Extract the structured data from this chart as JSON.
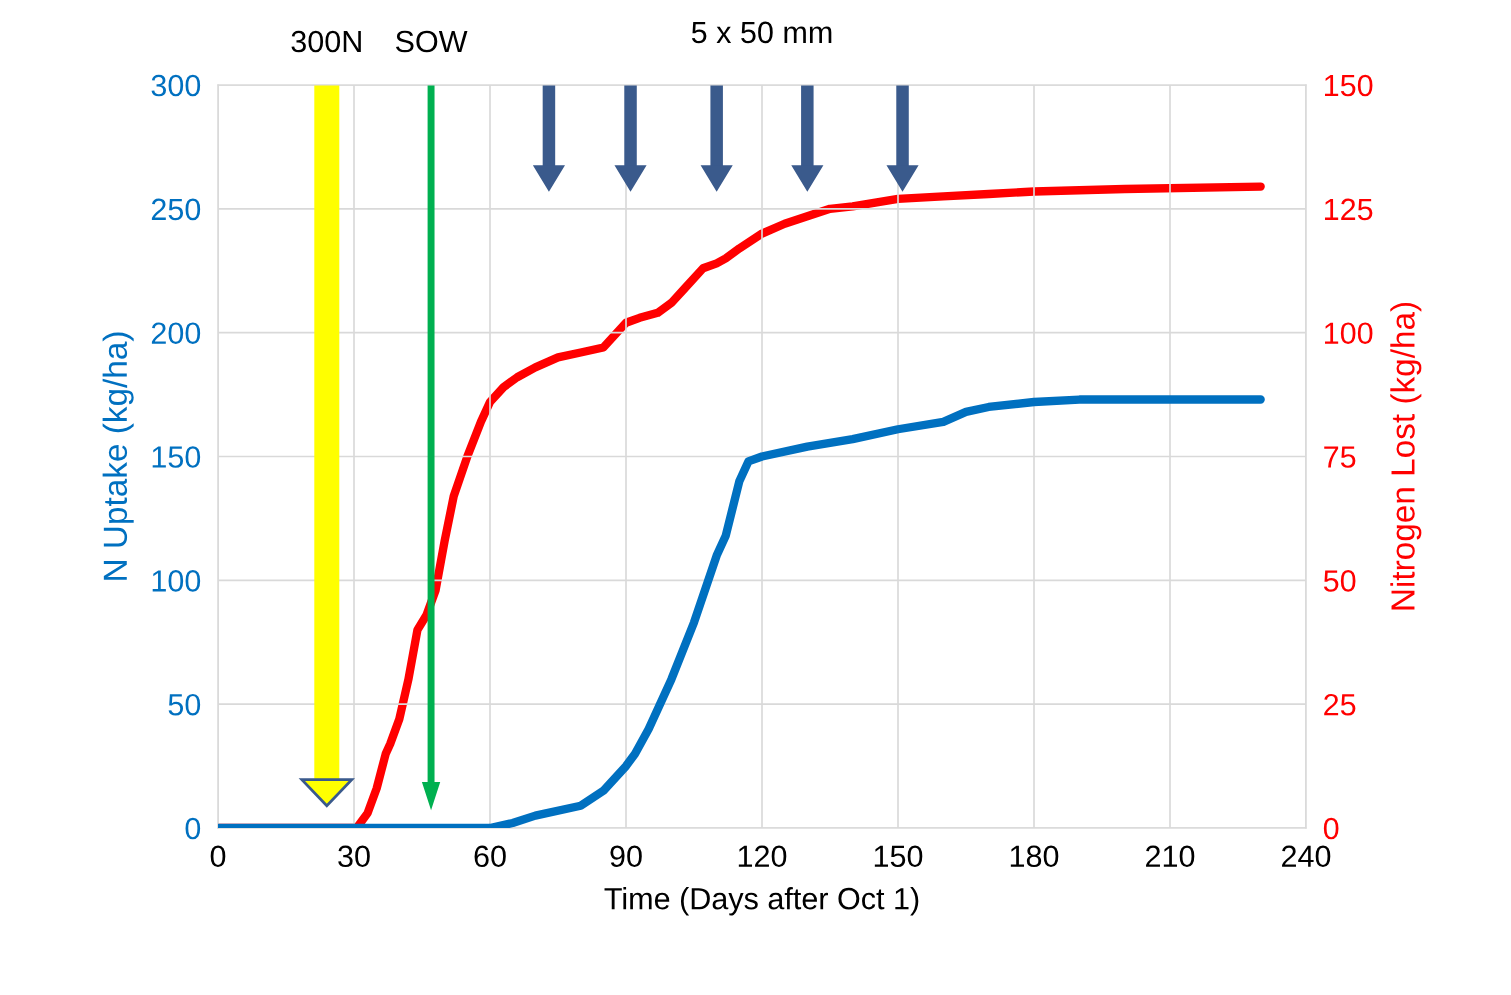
{
  "chart_data": {
    "type": "line",
    "xlabel": "Time (Days after Oct 1)",
    "ylabel": "N Uptake (kg/ha)",
    "y2label": "Nitrogen Lost (kg/ha)",
    "xlim": [
      0,
      240
    ],
    "xticks": [
      0,
      30,
      60,
      90,
      120,
      150,
      180,
      210,
      240
    ],
    "ylim": [
      0,
      300
    ],
    "yticks": [
      0,
      50,
      100,
      150,
      200,
      250,
      300
    ],
    "y2lim": [
      0,
      150
    ],
    "y2ticks": [
      0,
      25,
      50,
      75,
      100,
      125,
      150
    ],
    "grid": true,
    "marker": "none",
    "line_style": "solid",
    "series": [
      {
        "color": "#0070c0",
        "x": [
          0,
          30,
          50,
          60,
          65,
          70,
          80,
          85,
          90,
          92,
          95,
          100,
          105,
          110,
          112,
          115,
          117,
          120,
          130,
          140,
          150,
          160,
          165,
          170,
          180,
          190,
          200,
          230
        ],
        "values": [
          0,
          0,
          0,
          0,
          2,
          5,
          9,
          15,
          25,
          30,
          40,
          60,
          83,
          110,
          118,
          140,
          148,
          150,
          154,
          157,
          161,
          164,
          168,
          170,
          172,
          173,
          173,
          173
        ]
      },
      {
        "color": "#ff0000",
        "axis": "y2",
        "x": [
          0,
          30,
          31,
          33,
          35,
          37,
          38,
          40,
          42,
          44,
          46,
          48,
          50,
          52,
          55,
          58,
          60,
          63,
          66,
          70,
          75,
          80,
          85,
          90,
          93,
          97,
          100,
          103,
          107,
          110,
          112,
          115,
          120,
          125,
          130,
          135,
          140,
          150,
          160,
          170,
          180,
          200,
          230
        ],
        "values": [
          0,
          0,
          0.5,
          3,
          8,
          15,
          17,
          22,
          30,
          40,
          43,
          48,
          58,
          67,
          75,
          82,
          86,
          89,
          91,
          93,
          95,
          96,
          97,
          102,
          103,
          104,
          106,
          109,
          113,
          114,
          115,
          117,
          120,
          122,
          123.5,
          125,
          125.5,
          127,
          127.5,
          128,
          128.5,
          129,
          129.5
        ]
      }
    ],
    "ref_lines": [
      {
        "axis": "x",
        "value": 24,
        "label": "300N",
        "color": "#ffff00"
      },
      {
        "axis": "x",
        "value": 47,
        "label": "SOW",
        "color": "#00b050"
      },
      {
        "axis": "x",
        "value": 73,
        "color": "#3a5a8c"
      },
      {
        "axis": "x",
        "value": 91,
        "color": "#3a5a8c"
      },
      {
        "axis": "x",
        "value": 110,
        "color": "#3a5a8c"
      },
      {
        "axis": "x",
        "value": 130,
        "color": "#3a5a8c"
      },
      {
        "axis": "x",
        "value": 151,
        "color": "#3a5a8c"
      }
    ],
    "annotations": [
      "5 x 50 mm"
    ]
  }
}
